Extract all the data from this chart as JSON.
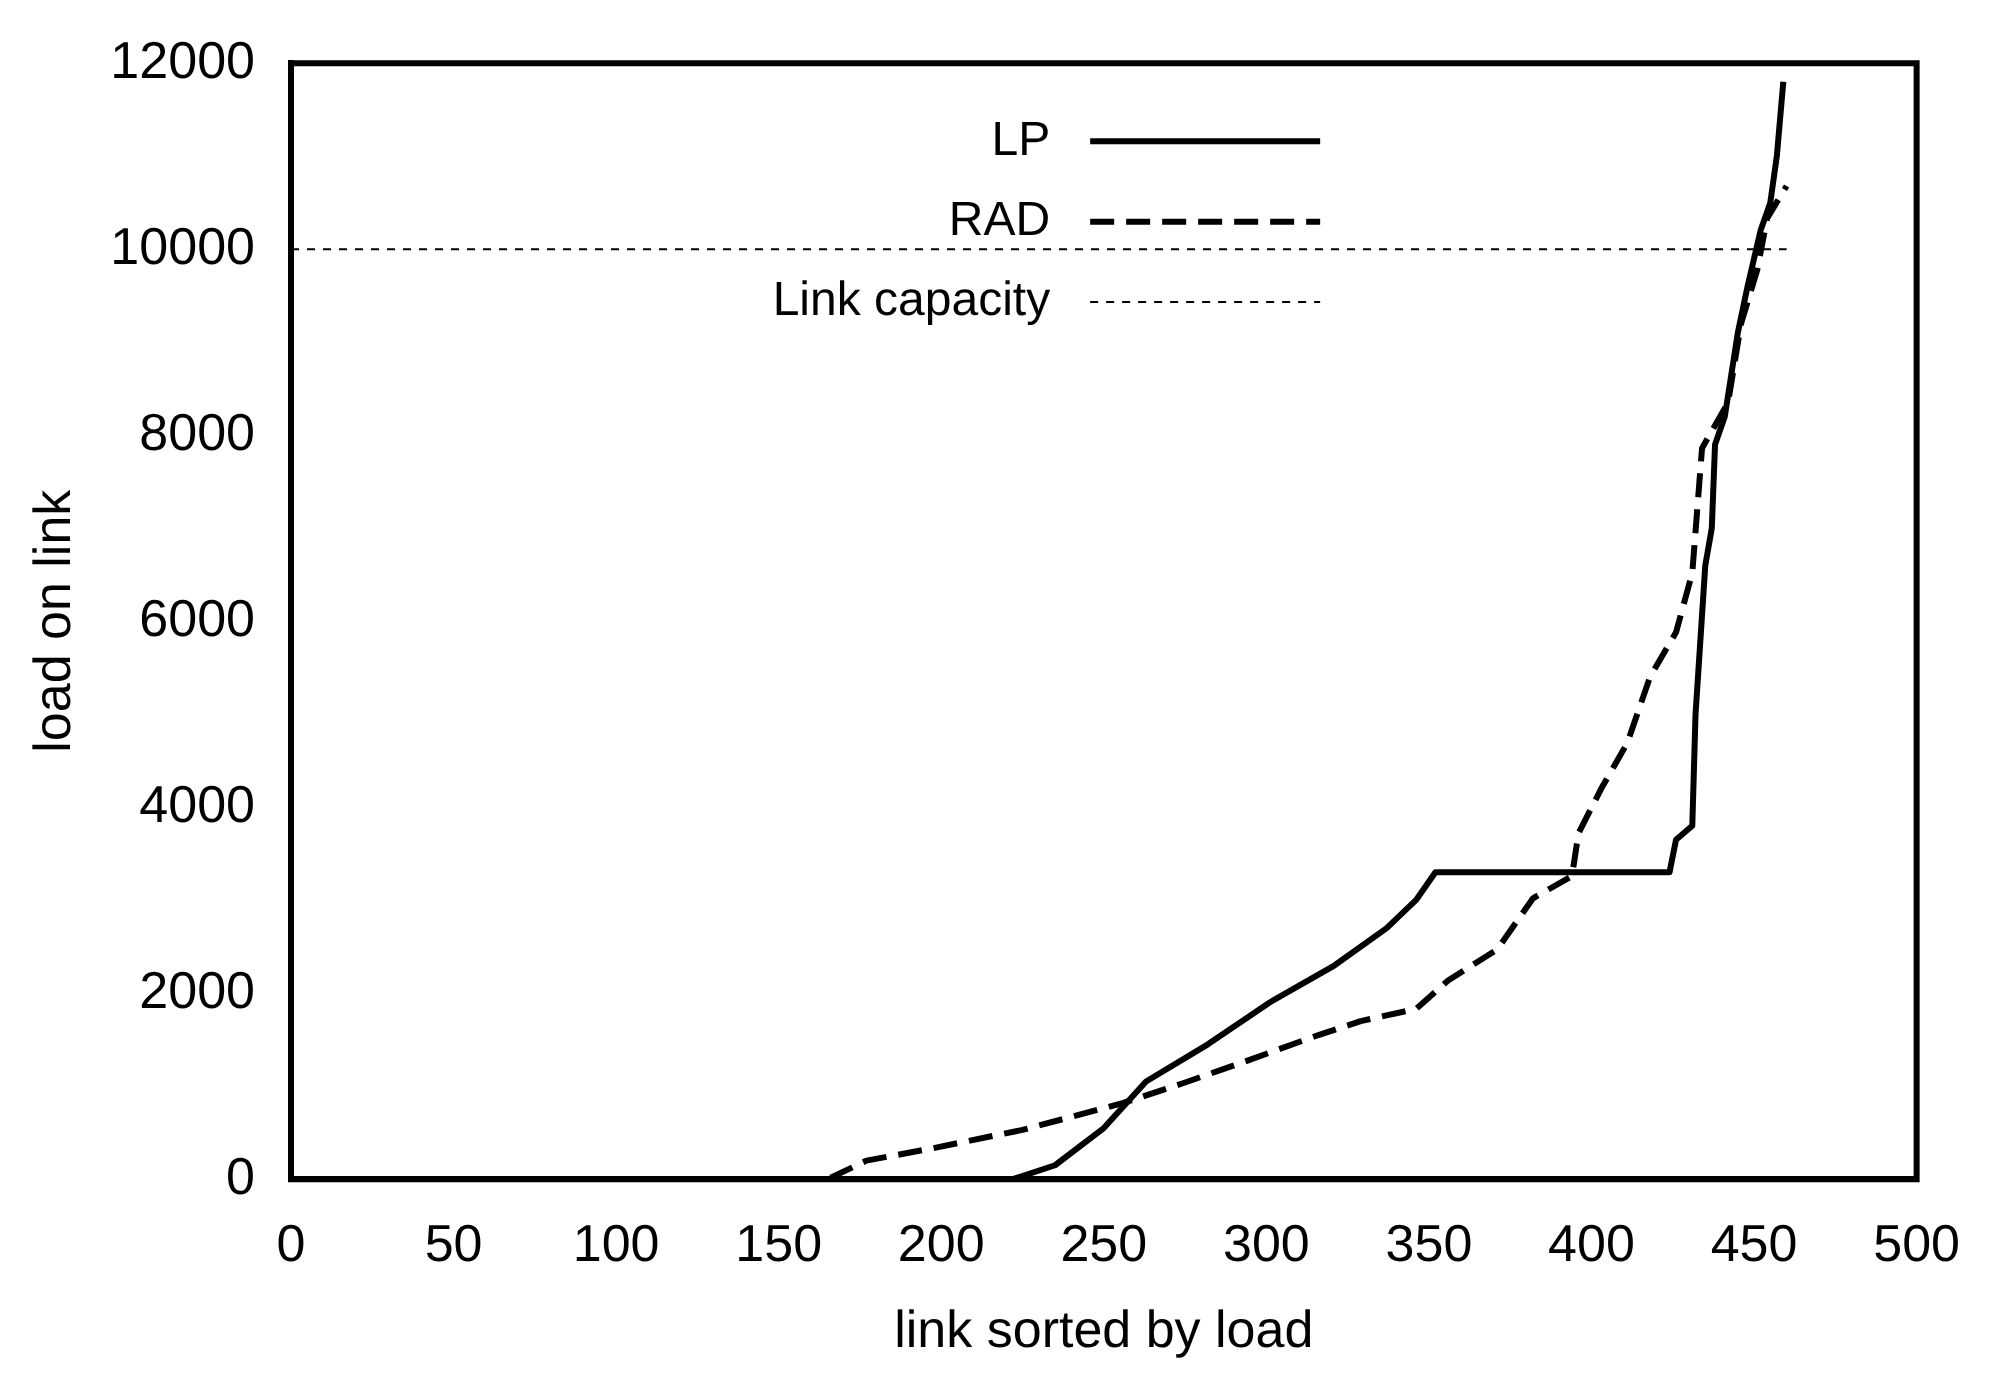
{
  "chart_data": {
    "type": "line",
    "xlabel": "link sorted by load",
    "ylabel": "load on link",
    "xlim": [
      0,
      500
    ],
    "xticks": [
      0,
      50,
      100,
      150,
      200,
      250,
      300,
      350,
      400,
      450,
      500
    ],
    "ylim": [
      0,
      12000
    ],
    "yticks": [
      0,
      2000,
      4000,
      6000,
      8000,
      10000,
      12000
    ],
    "grid": false,
    "legend": "top",
    "marker": "none",
    "series": [
      {
        "name": "LP",
        "color": "#000000",
        "line_style": "solid",
        "x": [
          0,
          222,
          235,
          250,
          263,
          282,
          301,
          321,
          337,
          346,
          352,
          424,
          426,
          431,
          432,
          435,
          437,
          438,
          441,
          445,
          448,
          452,
          455,
          457,
          459
        ],
        "values": [
          0,
          0,
          150,
          550,
          1050,
          1450,
          1900,
          2300,
          2700,
          3000,
          3300,
          3300,
          3650,
          3800,
          5000,
          6600,
          7000,
          7900,
          8200,
          9100,
          9600,
          10200,
          10500,
          11000,
          11800
        ]
      },
      {
        "name": "RAD",
        "color": "#000000",
        "line_style": "dashed",
        "x": [
          0,
          165,
          177,
          197,
          225,
          256,
          275,
          293,
          316,
          329,
          346,
          356,
          371,
          382,
          394,
          396,
          403,
          411,
          418,
          426,
          431,
          434,
          442,
          446,
          451,
          454,
          460
        ],
        "values": [
          0,
          0,
          200,
          330,
          530,
          820,
          1040,
          1260,
          1550,
          1700,
          1830,
          2140,
          2470,
          3020,
          3260,
          3720,
          4200,
          4690,
          5400,
          5880,
          6520,
          7860,
          8350,
          9200,
          9780,
          10330,
          10680
        ]
      },
      {
        "name": "Link capacity",
        "color": "#000000",
        "line_style": "dotted",
        "x": [
          0,
          460
        ],
        "values": [
          10000,
          10000
        ]
      }
    ]
  }
}
